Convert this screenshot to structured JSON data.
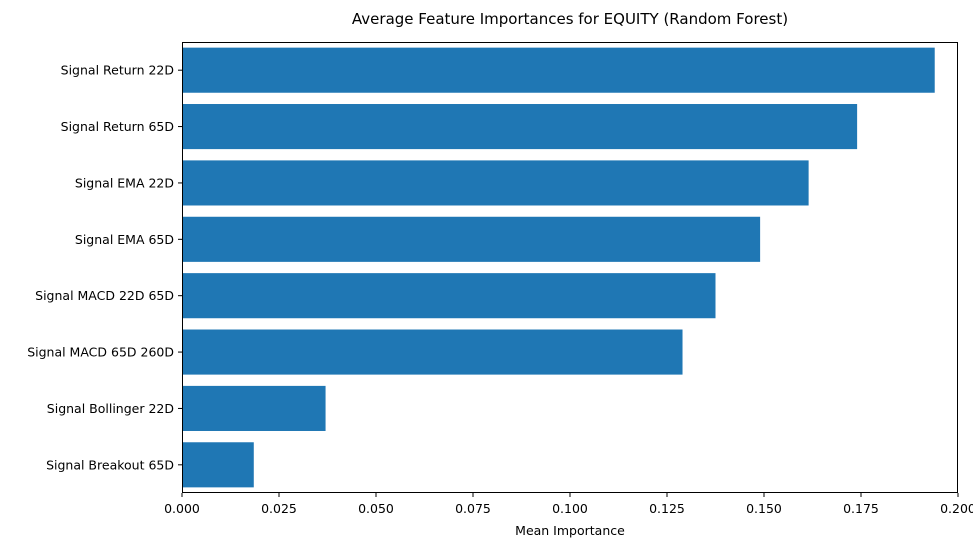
{
  "chart_data": {
    "type": "bar",
    "orientation": "horizontal",
    "title": "Average Feature Importances for EQUITY (Random Forest)",
    "xlabel": "Mean Importance",
    "ylabel": "",
    "categories": [
      "Signal Return 22D",
      "Signal Return 65D",
      "Signal EMA 22D",
      "Signal EMA 65D",
      "Signal MACD 22D 65D",
      "Signal MACD 65D 260D",
      "Signal Bollinger 22D",
      "Signal Breakout 65D"
    ],
    "values": [
      0.194,
      0.174,
      0.1615,
      0.149,
      0.1375,
      0.129,
      0.037,
      0.0185
    ],
    "xlim": [
      0,
      0.2
    ],
    "xticks": [
      0.0,
      0.025,
      0.05,
      0.075,
      0.1,
      0.125,
      0.15,
      0.175,
      0.2
    ],
    "xtick_labels": [
      "0.000",
      "0.025",
      "0.050",
      "0.075",
      "0.100",
      "0.125",
      "0.150",
      "0.175",
      "0.200"
    ],
    "bar_color": "#1f77b4",
    "grid": false,
    "legend": false
  }
}
